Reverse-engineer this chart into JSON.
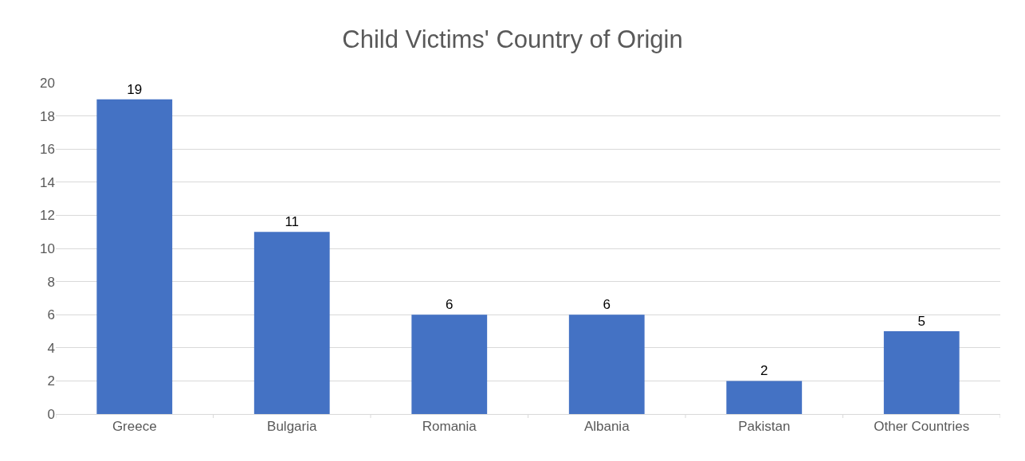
{
  "chart_data": {
    "type": "bar",
    "title": "Child Victims' Country of Origin",
    "categories": [
      "Greece",
      "Bulgaria",
      "Romania",
      "Albania",
      "Pakistan",
      "Other Countries"
    ],
    "values": [
      19,
      11,
      6,
      6,
      2,
      5
    ],
    "color": "#4472c4",
    "ylim": [
      0,
      20
    ],
    "yticks": [
      0,
      2,
      4,
      6,
      8,
      10,
      12,
      14,
      16,
      18,
      20
    ],
    "grid": "y",
    "data_labels": true
  }
}
